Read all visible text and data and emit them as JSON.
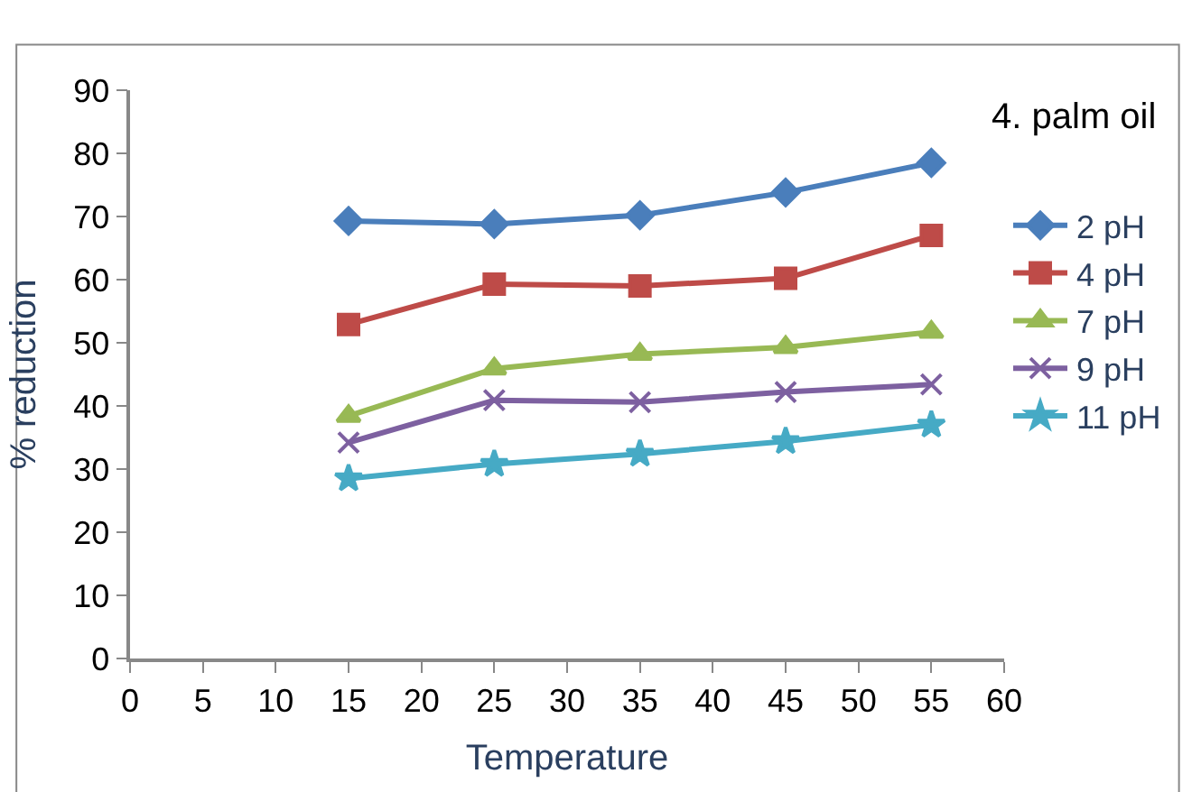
{
  "chart_data": {
    "type": "line",
    "title": "4. palm oil",
    "xlabel": "Temperature",
    "ylabel": "% reduction",
    "x": [
      15,
      25,
      35,
      45,
      55
    ],
    "series": [
      {
        "name": "2 pH",
        "color": "#4a7ebb",
        "marker": "diamond",
        "values": [
          69.3,
          68.8,
          70.2,
          73.8,
          78.5
        ]
      },
      {
        "name": "4 pH",
        "color": "#be4b48",
        "marker": "square",
        "values": [
          52.9,
          59.3,
          59.0,
          60.2,
          67.0
        ]
      },
      {
        "name": "7 pH",
        "color": "#98b954",
        "marker": "triangle",
        "values": [
          38.4,
          45.9,
          48.2,
          49.3,
          51.7
        ]
      },
      {
        "name": "9 pH",
        "color": "#7d60a0",
        "marker": "cross",
        "values": [
          34.2,
          40.9,
          40.6,
          42.2,
          43.4
        ]
      },
      {
        "name": "11 pH",
        "color": "#46aac5",
        "marker": "star",
        "values": [
          28.5,
          30.8,
          32.4,
          34.4,
          37.0
        ]
      }
    ],
    "xlim": [
      0,
      60
    ],
    "xticks": [
      0,
      5,
      10,
      15,
      20,
      25,
      30,
      35,
      40,
      45,
      50,
      55,
      60
    ],
    "ylim": [
      0,
      90
    ],
    "yticks": [
      0,
      10,
      20,
      30,
      40,
      50,
      60,
      70,
      80,
      90
    ],
    "legend": "right",
    "line_style": "solid"
  }
}
